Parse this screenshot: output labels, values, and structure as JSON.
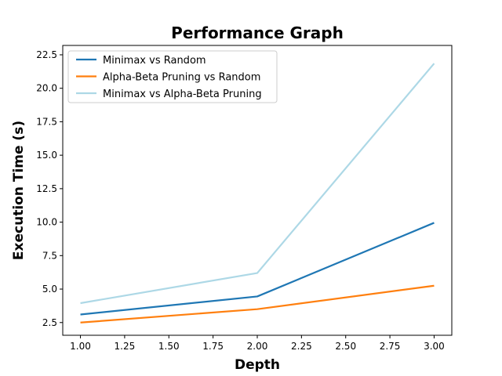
{
  "chart_data": {
    "type": "line",
    "title": "Performance Graph",
    "xlabel": "Depth",
    "ylabel": "Execution Time (s)",
    "x": [
      1.0,
      2.0,
      3.0
    ],
    "xlim": [
      0.9,
      3.1
    ],
    "ylim": [
      1.55,
      23.2
    ],
    "xticks": [
      "1.00",
      "1.25",
      "1.50",
      "1.75",
      "2.00",
      "2.25",
      "2.50",
      "2.75",
      "3.00"
    ],
    "yticks": [
      "2.5",
      "5.0",
      "7.5",
      "10.0",
      "12.5",
      "15.0",
      "17.5",
      "20.0",
      "22.5"
    ],
    "grid": false,
    "legend_position": "top-left",
    "series": [
      {
        "name": "Minimax vs Random",
        "values": [
          3.1,
          4.45,
          9.95
        ],
        "color": "#1f77b4"
      },
      {
        "name": "Alpha-Beta Pruning vs Random",
        "values": [
          2.5,
          3.5,
          5.25
        ],
        "color": "#ff7f0e"
      },
      {
        "name": "Minimax vs Alpha-Beta Pruning",
        "values": [
          3.95,
          6.2,
          21.85
        ],
        "color": "#add8e6"
      }
    ]
  }
}
